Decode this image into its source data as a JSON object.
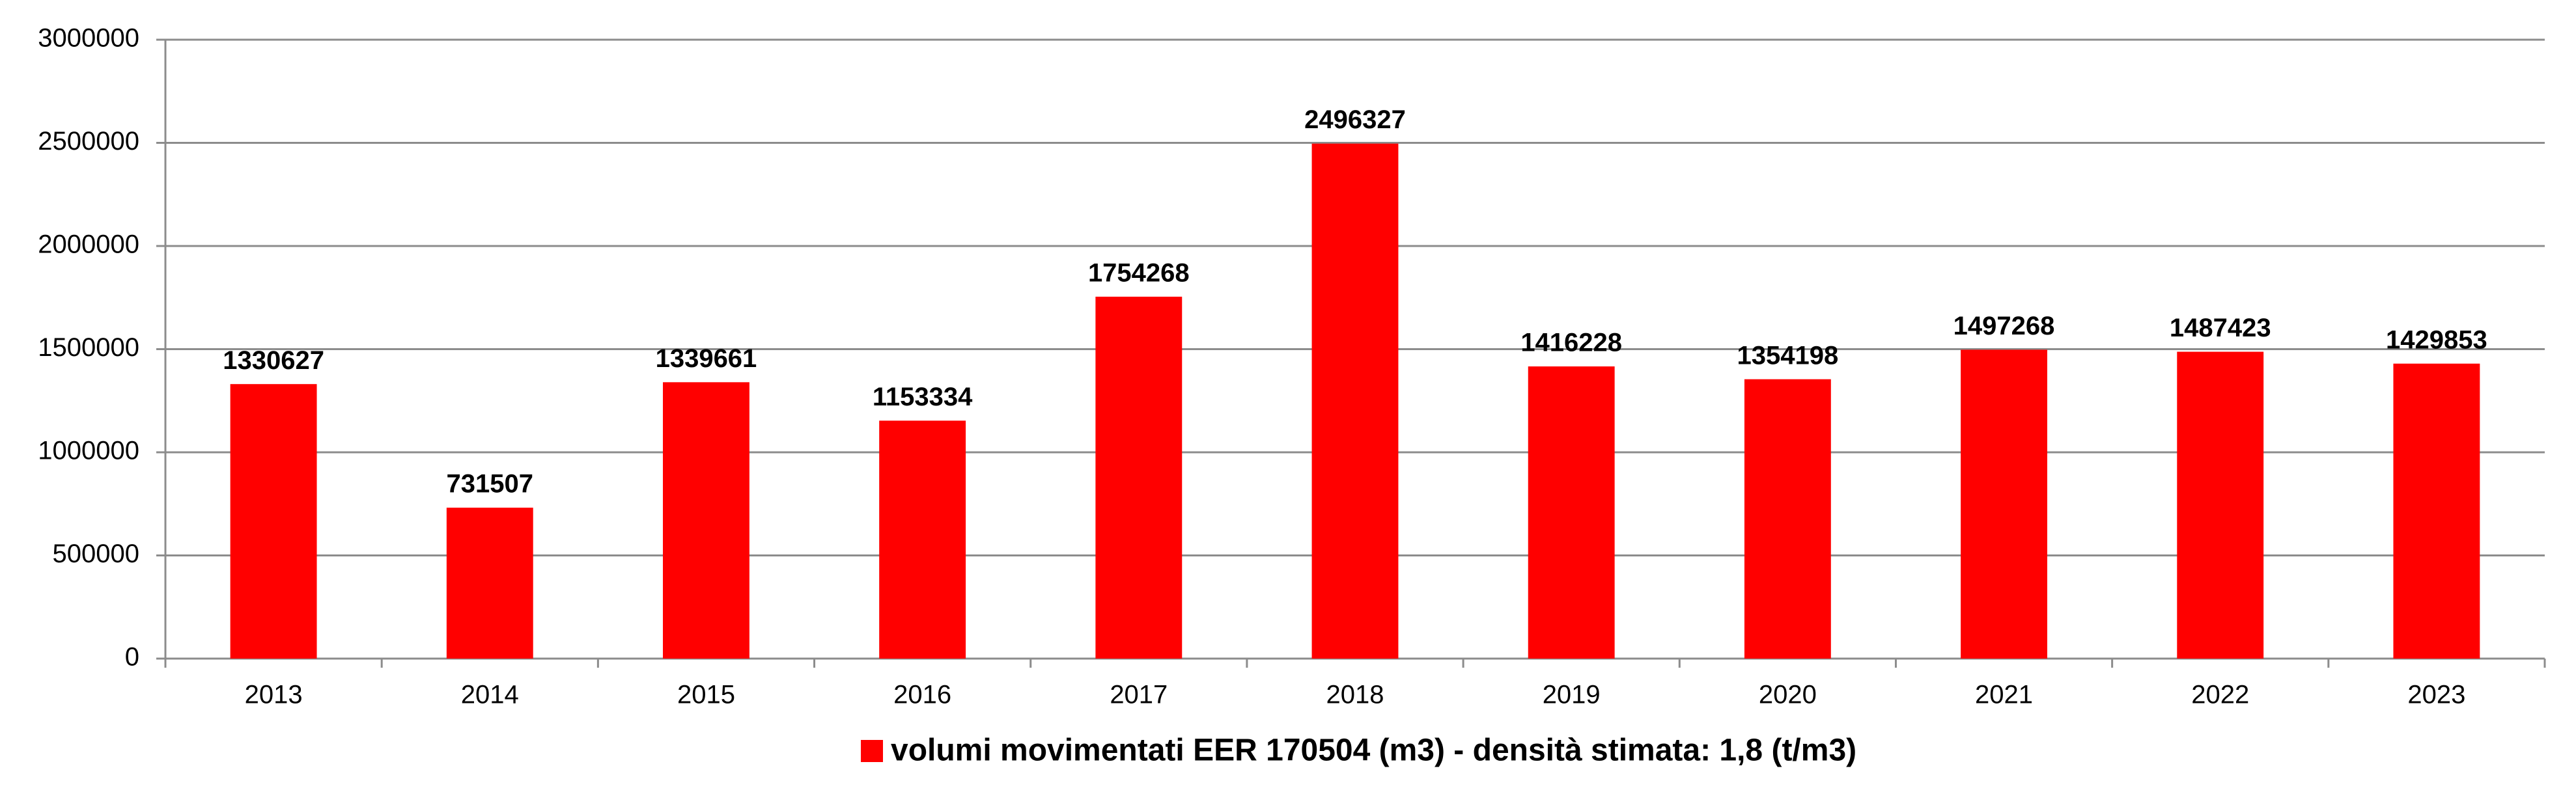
{
  "chart_data": {
    "type": "bar",
    "categories": [
      "2013",
      "2014",
      "2015",
      "2016",
      "2017",
      "2018",
      "2019",
      "2020",
      "2021",
      "2022",
      "2023"
    ],
    "series": [
      {
        "name": "volumi movimentati EER 170504 (m3) - densità stimata: 1,8 (t/m3)",
        "color": "#ff0000",
        "values": [
          1330627,
          731507,
          1339661,
          1153334,
          1754268,
          2496327,
          1416228,
          1354198,
          1497268,
          1487423,
          1429853
        ]
      }
    ],
    "ylim": [
      0,
      3000000
    ],
    "yticks": [
      0,
      500000,
      1000000,
      1500000,
      2000000,
      2500000,
      3000000
    ],
    "grid": true,
    "legend": "bottom"
  }
}
